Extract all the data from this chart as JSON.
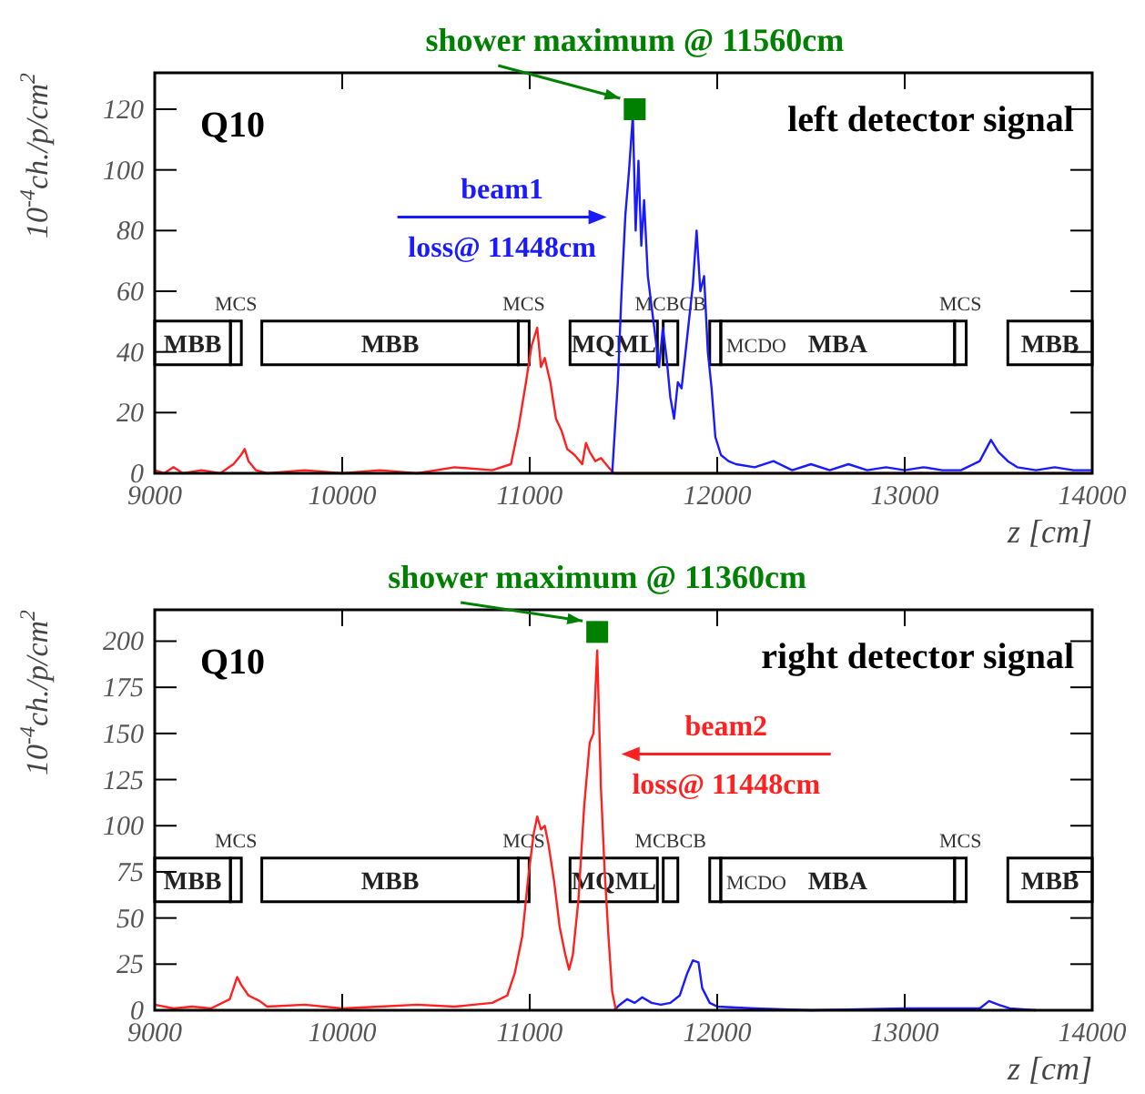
{
  "chart_data": [
    {
      "type": "line",
      "title": "left detector signal",
      "subtitle": "Q10",
      "xlabel": "z [cm]",
      "ylabel": "10$^{-4}$ch./p/cm$^{2}$",
      "xlim": [
        9000,
        14000
      ],
      "ylim": [
        0,
        132
      ],
      "xticks": [
        9000,
        10000,
        11000,
        12000,
        13000,
        14000
      ],
      "yticks": [
        0,
        20,
        40,
        60,
        80,
        100,
        120
      ],
      "grid": false,
      "legend": false,
      "series": [
        {
          "color": "#ff2020",
          "x": [
            9000,
            9050,
            9100,
            9150,
            9250,
            9350,
            9420,
            9460,
            9480,
            9500,
            9540,
            9600,
            9800,
            10000,
            10200,
            10400,
            10600,
            10800,
            10900,
            10940,
            10980,
            11010,
            11040,
            11060,
            11080,
            11110,
            11140,
            11170,
            11200,
            11240,
            11280,
            11300,
            11320,
            11350,
            11380,
            11420,
            11450,
            14000
          ],
          "values": [
            1,
            0,
            2,
            0,
            1,
            0,
            3,
            6,
            8,
            4,
            1,
            0,
            1,
            0,
            1,
            0,
            2,
            1,
            3,
            15,
            30,
            42,
            48,
            35,
            38,
            30,
            18,
            14,
            8,
            6,
            3,
            10,
            7,
            4,
            5,
            2,
            0,
            0
          ]
        },
        {
          "name": "beam1",
          "color": "#1a1aff",
          "x": [
            11440,
            11470,
            11490,
            11510,
            11530,
            11550,
            11565,
            11580,
            11595,
            11610,
            11630,
            11650,
            11670,
            11690,
            11710,
            11730,
            11750,
            11770,
            11790,
            11810,
            11840,
            11870,
            11890,
            11910,
            11930,
            11950,
            11970,
            11990,
            12020,
            12060,
            12100,
            12200,
            12300,
            12400,
            12500,
            12600,
            12700,
            12800,
            12900,
            13000,
            13100,
            13200,
            13300,
            13400,
            13460,
            13500,
            13550,
            13600,
            13700,
            13800,
            13900,
            14000
          ],
          "values": [
            0,
            30,
            60,
            85,
            100,
            118,
            80,
            103,
            75,
            90,
            65,
            55,
            45,
            35,
            48,
            38,
            25,
            18,
            30,
            28,
            45,
            62,
            80,
            60,
            65,
            40,
            28,
            12,
            6,
            4,
            3,
            2,
            4,
            1,
            3,
            1,
            3,
            1,
            2,
            1,
            2,
            1,
            1,
            4,
            11,
            7,
            4,
            2,
            1,
            2,
            1,
            1
          ]
        },
        {
          "type": "scatter",
          "marker": "square",
          "color": "#008000",
          "x": [
            11560
          ],
          "values": [
            120
          ]
        }
      ],
      "annotations": [
        {
          "text": "shower maximum @ 11560cm",
          "x": 11560,
          "y": 120
        },
        "loss@ 11448cm",
        "MBB",
        "MCS",
        "MBB",
        "MCS",
        "MQML",
        "MCBCB",
        "MCDO",
        "MBA",
        "MCS",
        "MBB"
      ]
    },
    {
      "type": "line",
      "title": "right detector signal",
      "subtitle": "Q10",
      "xlabel": "z [cm]",
      "ylabel": "10$^{-4}$ch./p/cm$^{2}$",
      "xlim": [
        9000,
        14000
      ],
      "ylim": [
        0,
        217
      ],
      "xticks": [
        9000,
        10000,
        11000,
        12000,
        13000,
        14000
      ],
      "yticks": [
        0,
        25,
        50,
        75,
        100,
        125,
        150,
        175,
        200
      ],
      "grid": false,
      "legend": false,
      "series": [
        {
          "color": "#1a1aff",
          "x": [
            11450,
            11480,
            11520,
            11560,
            11600,
            11650,
            11700,
            11750,
            11800,
            11840,
            11870,
            11900,
            11920,
            11960,
            12000,
            12200,
            12500,
            13000,
            13400,
            13450,
            13500,
            13560,
            13700
          ],
          "values": [
            0,
            3,
            6,
            4,
            7,
            4,
            3,
            4,
            8,
            20,
            27,
            26,
            12,
            4,
            2,
            1,
            0,
            1,
            1,
            5,
            3,
            1,
            0
          ]
        },
        {
          "name": "beam2",
          "color": "#ff2020",
          "x": [
            9000,
            9100,
            9200,
            9300,
            9400,
            9440,
            9460,
            9500,
            9560,
            9600,
            9800,
            10000,
            10200,
            10400,
            10600,
            10800,
            10880,
            10920,
            10960,
            10990,
            11020,
            11040,
            11060,
            11080,
            11100,
            11130,
            11160,
            11190,
            11210,
            11230,
            11260,
            11290,
            11320,
            11340,
            11360,
            11380,
            11400,
            11420,
            11440,
            11460
          ],
          "values": [
            3,
            1,
            2,
            1,
            6,
            18,
            14,
            8,
            5,
            2,
            3,
            1,
            2,
            3,
            2,
            4,
            8,
            20,
            40,
            70,
            95,
            105,
            98,
            100,
            90,
            70,
            45,
            30,
            22,
            30,
            60,
            110,
            145,
            150,
            195,
            120,
            75,
            40,
            10,
            0
          ]
        },
        {
          "type": "scatter",
          "marker": "square",
          "color": "#008000",
          "x": [
            11360
          ],
          "values": [
            205
          ]
        }
      ],
      "annotations": [
        {
          "text": "shower maximum @ 11360cm",
          "x": 11360,
          "y": 205
        },
        "loss@ 11448cm",
        "MBB",
        "MCS",
        "MBB",
        "MCS",
        "MQML",
        "MCBCB",
        "MCDO",
        "MBA",
        "MCS",
        "MBB"
      ]
    }
  ]
}
